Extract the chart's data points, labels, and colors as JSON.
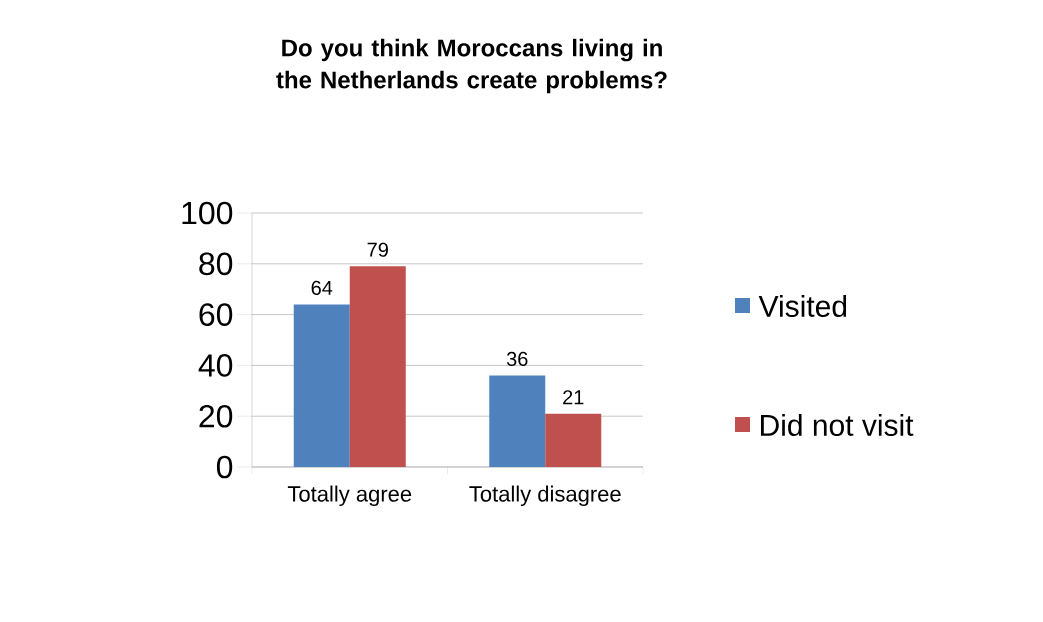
{
  "chart_data": {
    "type": "bar",
    "title": "Do you think Moroccans living in the Netherlands create problems?",
    "categories": [
      "Totally agree",
      "Totally disagree"
    ],
    "series": [
      {
        "name": "Visited",
        "color": "#4f81bd",
        "values": [
          64,
          36
        ]
      },
      {
        "name": "Did not visit",
        "color": "#c0504d",
        "values": [
          79,
          21
        ]
      }
    ],
    "ylim": [
      0,
      100
    ],
    "yticks": [
      0,
      20,
      40,
      60,
      80,
      100
    ],
    "grid": "y",
    "legend": "right",
    "data_labels": true
  }
}
